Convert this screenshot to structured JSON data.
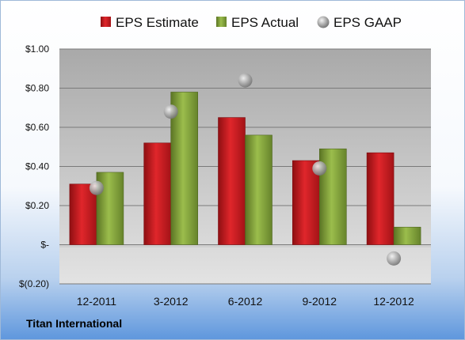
{
  "company_label": "Titan International",
  "chart_data": {
    "type": "bar",
    "categories": [
      "12-2011",
      "3-2012",
      "6-2012",
      "9-2012",
      "12-2012"
    ],
    "series": [
      {
        "name": "EPS Estimate",
        "type": "bar",
        "color": "#c0161b",
        "values": [
          0.31,
          0.52,
          0.65,
          0.43,
          0.47
        ]
      },
      {
        "name": "EPS Actual",
        "type": "bar",
        "color": "#7a9a35",
        "values": [
          0.37,
          0.78,
          0.56,
          0.49,
          0.09
        ]
      },
      {
        "name": "EPS GAAP",
        "type": "scatter",
        "color": "#a9a9a9",
        "values": [
          0.29,
          0.68,
          0.84,
          0.39,
          -0.07
        ]
      }
    ],
    "ylim": [
      -0.2,
      1.0
    ],
    "yticks": [
      {
        "value": 1.0,
        "label": "$1.00"
      },
      {
        "value": 0.8,
        "label": "$0.80"
      },
      {
        "value": 0.6,
        "label": "$0.60"
      },
      {
        "value": 0.4,
        "label": "$0.40"
      },
      {
        "value": 0.2,
        "label": "$0.20"
      },
      {
        "value": 0.0,
        "label": "$-"
      },
      {
        "value": -0.2,
        "label": "$(0.20)"
      }
    ],
    "grid": true,
    "legend_position": "top"
  }
}
